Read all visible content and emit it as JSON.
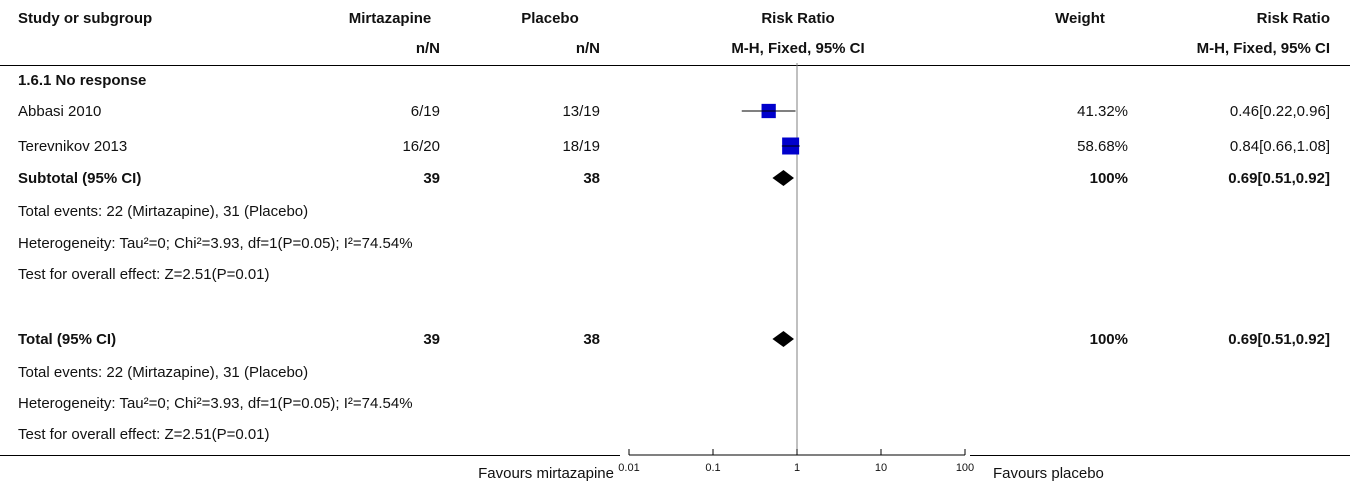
{
  "header": {
    "study_col": "Study or subgroup",
    "exp_group": "Mirtazapine",
    "exp_sub": "n/N",
    "ctrl_group": "Placebo",
    "ctrl_sub": "n/N",
    "plot_title": "Risk Ratio",
    "plot_sub": "M-H, Fixed, 95% CI",
    "weight": "Weight",
    "rr_title": "Risk Ratio",
    "rr_sub": "M-H, Fixed, 95% CI"
  },
  "subgroup": {
    "title": "1.6.1 No response",
    "studies": [
      {
        "name": "Abbasi 2010",
        "exp": "6/19",
        "ctrl": "13/19",
        "weight": "41.32%",
        "rr": "0.46[0.22,0.96]"
      },
      {
        "name": "Terevnikov 2013",
        "exp": "16/20",
        "ctrl": "18/19",
        "weight": "58.68%",
        "rr": "0.84[0.66,1.08]"
      }
    ],
    "subtotal": {
      "label": "Subtotal (95% CI)",
      "exp": "39",
      "ctrl": "38",
      "weight": "100%",
      "rr": "0.69[0.51,0.92]"
    },
    "events": "Total events: 22 (Mirtazapine), 31 (Placebo)",
    "heterogeneity": "Heterogeneity: Tau²=0; Chi²=3.93, df=1(P=0.05); I²=74.54%",
    "overall": "Test for overall effect: Z=2.51(P=0.01)"
  },
  "total": {
    "label": "Total (95% CI)",
    "exp": "39",
    "ctrl": "38",
    "weight": "100%",
    "rr": "0.69[0.51,0.92]",
    "events": "Total events: 22 (Mirtazapine), 31 (Placebo)",
    "heterogeneity": "Heterogeneity: Tau²=0; Chi²=3.93, df=1(P=0.05); I²=74.54%",
    "overall": "Test for overall effect: Z=2.51(P=0.01)"
  },
  "footer": {
    "favours_left": "Favours mirtazapine",
    "favours_right": "Favours placebo"
  },
  "chart_data": {
    "type": "forest",
    "scale": "log",
    "xlim": [
      0.01,
      100
    ],
    "ticks": [
      0.01,
      0.1,
      1,
      10,
      100
    ],
    "tick_labels": [
      "0.01",
      "0.1",
      "1",
      "10",
      "100"
    ],
    "null_value": 1,
    "studies": [
      {
        "name": "Abbasi 2010",
        "rr": 0.46,
        "lower": 0.22,
        "upper": 0.96,
        "weight": 41.32
      },
      {
        "name": "Terevnikov 2013",
        "rr": 0.84,
        "lower": 0.66,
        "upper": 1.08,
        "weight": 58.68
      }
    ],
    "pooled": [
      {
        "name": "Subtotal (95% CI)",
        "rr": 0.69,
        "lower": 0.51,
        "upper": 0.92
      },
      {
        "name": "Total (95% CI)",
        "rr": 0.69,
        "lower": 0.51,
        "upper": 0.92
      }
    ],
    "colors": {
      "study_box": "#0000cc",
      "pooled_diamond": "#000000",
      "axis": "#000000",
      "null_line": "#808080"
    }
  }
}
